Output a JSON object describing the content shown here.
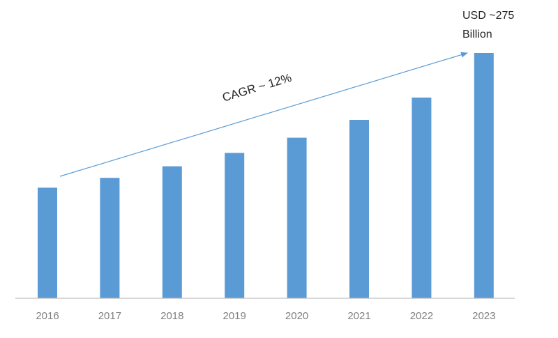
{
  "chart_data": {
    "type": "bar",
    "categories": [
      "2016",
      "2017",
      "2018",
      "2019",
      "2020",
      "2021",
      "2022",
      "2023"
    ],
    "values": [
      124,
      135,
      148,
      163,
      180,
      200,
      225,
      275
    ],
    "ylim": [
      0,
      275
    ],
    "grid": false,
    "legend": "none",
    "bar_color": "#5b9bd5",
    "axis_color": "#bfbfbf",
    "annotations": {
      "cagr": "CAGR ~ 12%",
      "end_value_line1": "USD ~275",
      "end_value_line2": "Billion"
    }
  }
}
